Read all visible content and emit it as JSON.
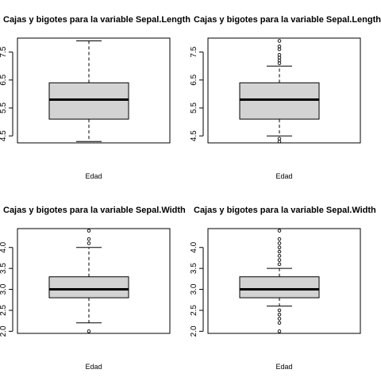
{
  "chart_data": [
    {
      "type": "boxplot",
      "title": "Cajas y bigotes para la variable Sepal.Length",
      "xlabel": "Edad",
      "ylim": [
        4.25,
        8.0
      ],
      "yticks": [
        4.5,
        5.5,
        6.5,
        7.5
      ],
      "ytick_labels": [
        "4.5",
        "5.5",
        "6.5",
        "7.5"
      ],
      "box": {
        "whisker_low": 4.3,
        "q1": 5.1,
        "median": 5.8,
        "q3": 6.4,
        "whisker_high": 7.9
      },
      "outliers": []
    },
    {
      "type": "boxplot",
      "title": "Cajas y bigotes para la variable Sepal.Length",
      "xlabel": "Edad",
      "ylim": [
        4.25,
        8.0
      ],
      "yticks": [
        4.5,
        5.5,
        6.5,
        7.5
      ],
      "ytick_labels": [
        "4.5",
        "5.5",
        "6.5",
        "7.5"
      ],
      "box": {
        "whisker_low": 4.5,
        "q1": 5.1,
        "median": 5.8,
        "q3": 6.4,
        "whisker_high": 7.0
      },
      "outliers": [
        4.3,
        4.4,
        7.1,
        7.2,
        7.3,
        7.4,
        7.6,
        7.7,
        7.9
      ]
    },
    {
      "type": "boxplot",
      "title": "Cajas y bigotes para la variable Sepal.Width",
      "xlabel": "Edad",
      "ylim": [
        1.95,
        4.45
      ],
      "yticks": [
        2.0,
        2.5,
        3.0,
        3.5,
        4.0
      ],
      "ytick_labels": [
        "2.0",
        "2.5",
        "3.0",
        "3.5",
        "4.0"
      ],
      "box": {
        "whisker_low": 2.2,
        "q1": 2.8,
        "median": 3.0,
        "q3": 3.3,
        "whisker_high": 4.0
      },
      "outliers": [
        2.0,
        4.1,
        4.2,
        4.4
      ]
    },
    {
      "type": "boxplot",
      "title": "Cajas y bigotes para la variable Sepal.Width",
      "xlabel": "Edad",
      "ylim": [
        1.95,
        4.45
      ],
      "yticks": [
        2.0,
        2.5,
        3.0,
        3.5,
        4.0
      ],
      "ytick_labels": [
        "2.0",
        "2.5",
        "3.0",
        "3.5",
        "4.0"
      ],
      "box": {
        "whisker_low": 2.6,
        "q1": 2.8,
        "median": 3.0,
        "q3": 3.3,
        "whisker_high": 3.5
      },
      "outliers": [
        2.0,
        2.2,
        2.3,
        2.4,
        2.5,
        3.6,
        3.7,
        3.8,
        3.9,
        4.0,
        4.1,
        4.2,
        4.4
      ]
    }
  ]
}
